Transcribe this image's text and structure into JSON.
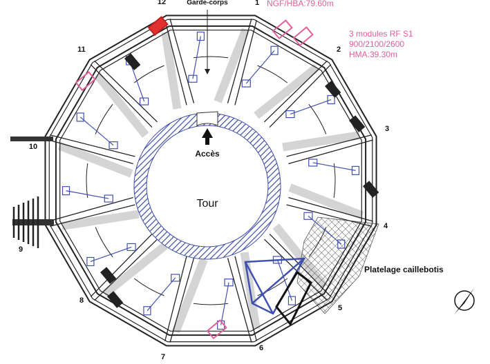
{
  "title_top": "Garde-corps",
  "altitude_label": "NGF/HBA:79.60m",
  "module_note": {
    "line1": "3 modules RF S1",
    "line2": "900/2100/2600",
    "line3": "HMA:39.30m"
  },
  "access_label": "Accès",
  "tower_label": "Tour",
  "floor_label": "Platelage caillebotis",
  "corner_numbers": [
    "1",
    "2",
    "3",
    "4",
    "5",
    "6",
    "7",
    "8",
    "9",
    "10",
    "11",
    "12"
  ]
}
